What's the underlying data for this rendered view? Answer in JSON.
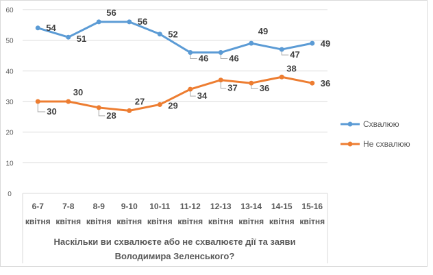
{
  "chart_data": {
    "type": "line",
    "title": "",
    "xlabel": "Наскільки ви схвалюєте або не схвалюєте дії та заяви Володимира Зеленського?",
    "xlabel_lines": [
      "Наскільки ви схвалюєте або не схвалюєте дії та заяви",
      "Володимира Зеленського?"
    ],
    "ylabel": "",
    "ylim": [
      0,
      60
    ],
    "yticks": [
      "0",
      "10",
      "20",
      "30",
      "40",
      "50",
      "60"
    ],
    "grid": true,
    "legend_position": "right",
    "categories": [
      [
        "6-7",
        "квітня"
      ],
      [
        "7-8",
        "квітня"
      ],
      [
        "8-9",
        "квітня"
      ],
      [
        "9-10",
        "квітня"
      ],
      [
        "10-11",
        "квітня"
      ],
      [
        "11-12",
        "квітня"
      ],
      [
        "12-13",
        "квітня"
      ],
      [
        "13-14",
        "квітня"
      ],
      [
        "14-15",
        "квітня"
      ],
      [
        "15-16",
        "квітня"
      ]
    ],
    "series": [
      {
        "name": "Схвалюю",
        "color": "#5B9BD5",
        "values": [
          54,
          51,
          56,
          56,
          52,
          46,
          46,
          49,
          47,
          49
        ]
      },
      {
        "name": "Не схвалюю",
        "color": "#ED7D31",
        "values": [
          30,
          30,
          28,
          27,
          29,
          34,
          37,
          36,
          38,
          36
        ]
      }
    ]
  }
}
